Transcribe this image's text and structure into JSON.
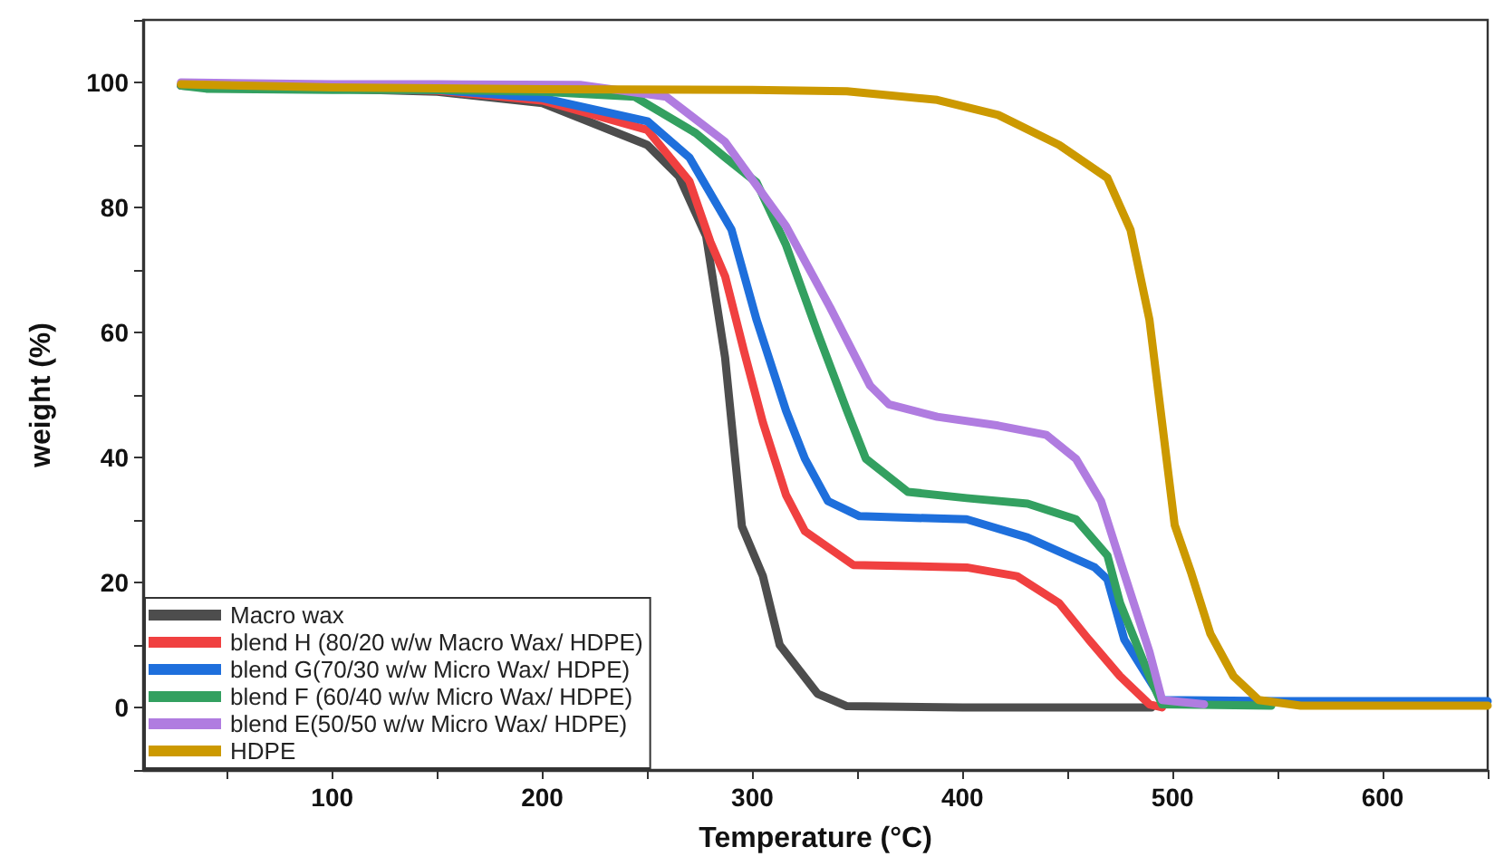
{
  "chart_data": {
    "type": "line",
    "xlabel": "Temperature (°C)",
    "ylabel": "weight (%)",
    "xlim": [
      10,
      650
    ],
    "ylim": [
      -10,
      110
    ],
    "xticks": [
      {
        "value": 50,
        "label": null
      },
      100,
      {
        "value": 150,
        "label": null
      },
      200,
      {
        "value": 250,
        "label": null
      },
      300,
      {
        "value": 350,
        "label": null
      },
      400,
      {
        "value": 450,
        "label": null
      },
      500,
      {
        "value": 550,
        "label": null
      },
      600,
      {
        "value": 650,
        "label": null
      }
    ],
    "yticks": [
      {
        "value": -10,
        "label": null
      },
      0,
      {
        "value": 10,
        "label": null
      },
      20,
      {
        "value": 30,
        "label": null
      },
      40,
      {
        "value": 50,
        "label": null
      },
      60,
      {
        "value": 70,
        "label": null
      },
      80,
      {
        "value": 90,
        "label": null
      },
      100,
      {
        "value": 110,
        "label": null
      }
    ],
    "grid": false,
    "legend": "bottom left",
    "marker": "none",
    "line_style": "solid",
    "series": [
      {
        "name": "Macro wax",
        "color": "#4d4d4d",
        "x": [
          28,
          100,
          150,
          200,
          250,
          265,
          278,
          287,
          295,
          305,
          313,
          331,
          345,
          400,
          490
        ],
        "values": [
          99.5,
          99,
          98.5,
          96.7,
          90,
          85,
          75.4,
          56,
          29,
          21,
          10,
          2.2,
          0.2,
          0,
          0
        ]
      },
      {
        "name": "blend H (80/20 w/w Macro Wax/ HDPE)",
        "color": "#f04040",
        "x": [
          28,
          100,
          150,
          200,
          250,
          270,
          280,
          287,
          296,
          305,
          316,
          325,
          348,
          402,
          426,
          446,
          460,
          475,
          489,
          495
        ],
        "values": [
          99.5,
          99,
          98.7,
          97.1,
          92.4,
          84.2,
          74.5,
          69,
          57,
          45.6,
          34,
          28.2,
          22.8,
          22.4,
          21,
          16.7,
          10.9,
          5,
          0.5,
          0
        ]
      },
      {
        "name": "blend G(70/30 w/w Micro Wax/ HDPE)",
        "color": "#1e6fdc",
        "x": [
          28,
          100,
          150,
          200,
          250,
          270,
          290,
          302,
          316,
          325,
          336,
          351,
          402,
          431,
          463,
          469,
          477,
          495,
          550,
          650
        ],
        "values": [
          99.5,
          99,
          98.8,
          97.5,
          93.8,
          88,
          76.5,
          62,
          47.5,
          39.8,
          33,
          30.6,
          30.1,
          27.2,
          22.4,
          20.5,
          10.9,
          1.2,
          1,
          1
        ]
      },
      {
        "name": "blend F (60/40 w/w Micro Wax/ HDPE)",
        "color": "#33a060",
        "x": [
          28,
          40,
          100,
          150,
          200,
          244,
          273,
          287,
          302,
          316,
          331,
          345,
          354,
          374,
          402,
          431,
          454,
          469,
          475,
          489,
          495,
          547
        ],
        "values": [
          99.5,
          99,
          98.8,
          98.8,
          98.5,
          97.7,
          91.9,
          88,
          84,
          74,
          60,
          47.5,
          39.8,
          34.5,
          33.5,
          32.6,
          30.1,
          24.3,
          16.7,
          5,
          0.5,
          0.3
        ]
      },
      {
        "name": "blend E(50/50 w/w Micro Wax/ HDPE)",
        "color": "#b07ce0",
        "x": [
          28,
          100,
          150,
          218,
          259,
          287,
          316,
          337,
          356,
          365,
          388,
          417,
          440,
          454,
          466,
          477,
          489,
          495,
          515
        ],
        "values": [
          100,
          99.7,
          99.7,
          99.6,
          97.7,
          90.5,
          77,
          64,
          51.5,
          48.5,
          46.5,
          45.1,
          43.6,
          39.8,
          33,
          21.4,
          8.9,
          1.2,
          0.5
        ]
      },
      {
        "name": "HDPE",
        "color": "#cc9900",
        "x": [
          28,
          100,
          200,
          300,
          345,
          388,
          417,
          446,
          469,
          480,
          489,
          495,
          501,
          509,
          518,
          529,
          541,
          561,
          650
        ],
        "values": [
          99.7,
          99.2,
          98.9,
          98.8,
          98.6,
          97.2,
          94.8,
          90,
          84.7,
          76.4,
          62,
          45.6,
          29.2,
          21.4,
          11.8,
          5,
          1.2,
          0.3,
          0.3
        ]
      }
    ]
  }
}
